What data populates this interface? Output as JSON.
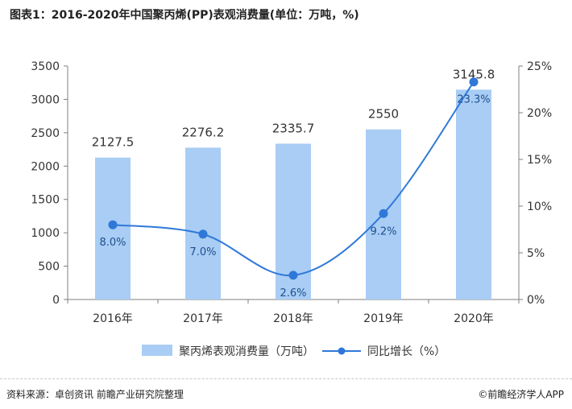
{
  "title": "图表1：2016-2020年中国聚丙烯(PP)表观消费量(单位：万吨，%)",
  "source": "资料来源：卓创资讯 前瞻产业研究院整理",
  "brand": "©前瞻经济学人APP",
  "colors": {
    "bar": "#a9cdf4",
    "line": "#2f78d8",
    "axis": "#7f7f7f",
    "text": "#333333"
  },
  "chart_data": {
    "type": "bar+line",
    "categories": [
      "2016年",
      "2017年",
      "2018年",
      "2019年",
      "2020年"
    ],
    "bar_series": {
      "name": "聚丙烯表观消费量（万吨）",
      "values": [
        2127.5,
        2276.2,
        2335.7,
        2550,
        3145.8
      ],
      "labels": [
        "2127.5",
        "2276.2",
        "2335.7",
        "2550",
        "3145.8"
      ]
    },
    "line_series": {
      "name": "同比增长（%）",
      "values": [
        8.0,
        7.0,
        2.6,
        9.2,
        23.3
      ],
      "labels": [
        "8.0%",
        "7.0%",
        "2.6%",
        "9.2%",
        "23.3%"
      ]
    },
    "y_left": {
      "min": 0,
      "max": 3500,
      "ticks": [
        "0",
        "500",
        "1000",
        "1500",
        "2000",
        "2500",
        "3000",
        "3500"
      ]
    },
    "y_right": {
      "min": 0,
      "max": 25,
      "ticks": [
        "0%",
        "5%",
        "10%",
        "15%",
        "20%",
        "25%"
      ]
    },
    "legend_position": "bottom",
    "grid": false
  }
}
